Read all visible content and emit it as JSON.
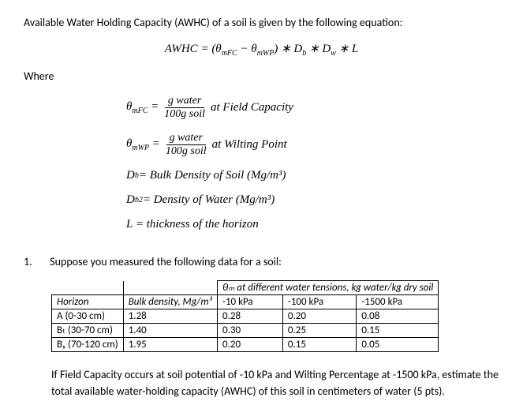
{
  "intro": "Available Water Holding Capacity (AWHC) of a soil is given by the following equation:",
  "equation": {
    "lhs": "AWHC",
    "rhs_prefix": "(θ",
    "sub1": "mFC",
    "minus": " − θ",
    "sub2": "mWP",
    "rhs_suffix": ") ∗ D",
    "sub3": "b",
    "times1": " ∗ D",
    "sub4": "w",
    "times2": " ∗ L"
  },
  "where": "Where",
  "defs": {
    "d1": {
      "sym": "θ",
      "sub": "mFC",
      "eq": " = ",
      "num": "g water",
      "den": "100g soil",
      "desc": "at Field Capacity"
    },
    "d2": {
      "sym": "θ",
      "sub": "mWP",
      "eq": " = ",
      "num": "g water",
      "den": "100g soil",
      "desc": " at Wilting Point"
    },
    "d3": {
      "sym": "D",
      "sub": "b",
      "desc": " = Bulk Density of Soil (Mg/m³)"
    },
    "d4": {
      "sym": "D",
      "sub": "b2",
      "desc": " = Density of Water (Mg/m³)"
    },
    "d5": {
      "desc": "L = thickness of the horizon"
    }
  },
  "question": {
    "num": "1.",
    "text": "Suppose you measured the following data for a soil:"
  },
  "table": {
    "header_span": "θₘ at different water tensions, kg water/kg dry soil",
    "col1": "Horizon",
    "col2": "Bulk density, Mg/m³",
    "col3": "-10 kPa",
    "col4": "-100 kPa",
    "col5": "-1500 kPa",
    "rows": [
      {
        "c1": "A (0-30 cm)",
        "c2": "1.28",
        "c3": "0.28",
        "c4": "0.20",
        "c5": "0.08"
      },
      {
        "c1": "Bₜ (30-70 cm)",
        "c2": "1.40",
        "c3": "0.30",
        "c4": "0.25",
        "c5": "0.15"
      },
      {
        "c1": "Bₓ (70-120 cm)",
        "c2": "1.95",
        "c3": "0.20",
        "c4": "0.15",
        "c5": "0.05"
      }
    ]
  },
  "closing": "If Field Capacity occurs at soil potential of -10 kPa and Wilting Percentage at -1500 kPa, estimate the total available water-holding capacity (AWHC) of this soil in centimeters of water (5 pts)."
}
